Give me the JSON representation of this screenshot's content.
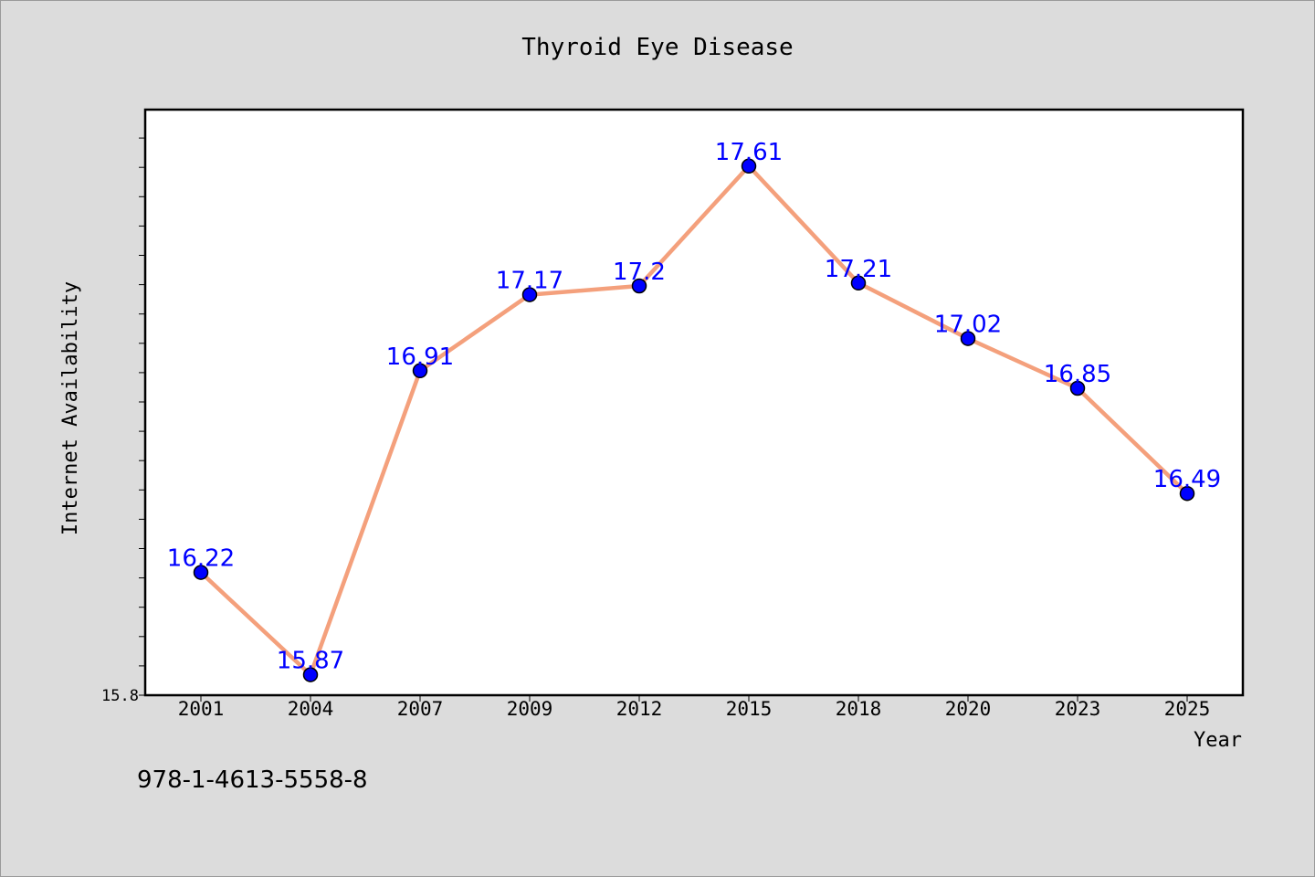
{
  "chart_data": {
    "type": "line",
    "title": "Thyroid Eye Disease",
    "xlabel": "Year",
    "ylabel": "Internet Availability",
    "categories": [
      "2001",
      "2004",
      "2007",
      "2009",
      "2012",
      "2015",
      "2018",
      "2020",
      "2023",
      "2025"
    ],
    "series": [
      {
        "values": [
          16.22,
          15.87,
          16.91,
          17.17,
          17.2,
          17.61,
          17.21,
          17.02,
          16.85,
          16.49
        ],
        "labels": [
          "16.22",
          "15.87",
          "16.91",
          "17.17",
          "17.2",
          "17.61",
          "17.21",
          "17.02",
          "16.85",
          "16.49"
        ],
        "line_color": "#f4a07c",
        "marker_color": "#0000ff"
      }
    ],
    "ylim": [
      15.8,
      17.8
    ],
    "ytick_labels": [
      "15.8"
    ],
    "grid": false,
    "legend": "none"
  },
  "footer": {
    "identifier": "978-1-4613-5558-8"
  }
}
